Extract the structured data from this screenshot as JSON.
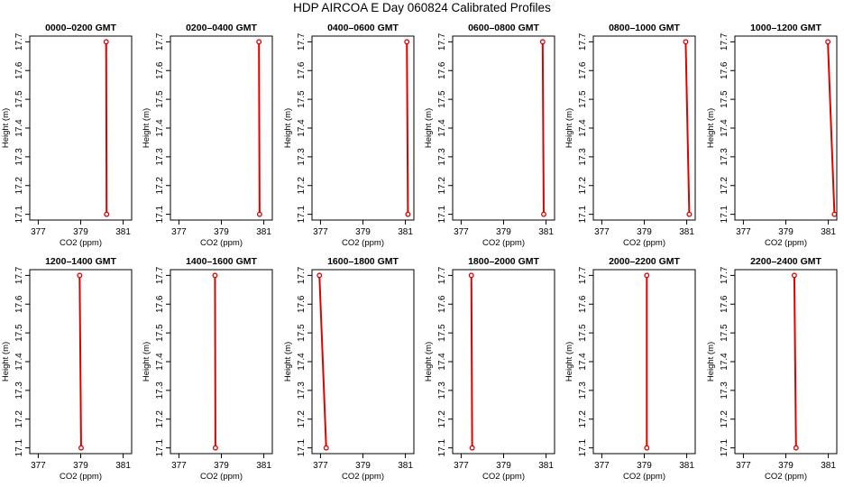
{
  "page": {
    "title": "HDP AIRCOA E  Day 060824  Calibrated Profiles"
  },
  "chart_data": {
    "type": "line",
    "xlabel": "CO2 (ppm)",
    "ylabel": "Height (m)",
    "xlim": [
      376.6,
      381.4
    ],
    "ylim": [
      17.08,
      17.72
    ],
    "xticks": [
      377,
      379,
      381
    ],
    "xtick_labels": [
      "377",
      "379",
      "381"
    ],
    "yticks": [
      17.1,
      17.2,
      17.3,
      17.4,
      17.5,
      17.6,
      17.7
    ],
    "ytick_labels": [
      "17.1",
      "17.2",
      "17.3",
      "17.4",
      "17.5",
      "17.6",
      "17.7"
    ],
    "grid": false,
    "line_color": "#e00000",
    "marker_color": "#e00000",
    "panels": [
      {
        "title": "0000–0200 GMT",
        "points": [
          {
            "x": 380.2,
            "y": 17.7
          },
          {
            "x": 380.22,
            "y": 17.1
          }
        ]
      },
      {
        "title": "0200–0400 GMT",
        "points": [
          {
            "x": 380.77,
            "y": 17.7
          },
          {
            "x": 380.8,
            "y": 17.1
          }
        ]
      },
      {
        "title": "0400–0600 GMT",
        "points": [
          {
            "x": 381.07,
            "y": 17.7
          },
          {
            "x": 381.12,
            "y": 17.1
          }
        ]
      },
      {
        "title": "0600–0800 GMT",
        "points": [
          {
            "x": 380.84,
            "y": 17.7
          },
          {
            "x": 380.89,
            "y": 17.1
          }
        ]
      },
      {
        "title": "0800–1000 GMT",
        "points": [
          {
            "x": 380.95,
            "y": 17.7
          },
          {
            "x": 381.12,
            "y": 17.1
          }
        ]
      },
      {
        "title": "1000–1200 GMT",
        "points": [
          {
            "x": 380.98,
            "y": 17.7
          },
          {
            "x": 381.29,
            "y": 17.1
          }
        ]
      },
      {
        "title": "1200–1400 GMT",
        "points": [
          {
            "x": 378.95,
            "y": 17.7
          },
          {
            "x": 379.02,
            "y": 17.1
          }
        ]
      },
      {
        "title": "1400–1600 GMT",
        "points": [
          {
            "x": 378.7,
            "y": 17.7
          },
          {
            "x": 378.72,
            "y": 17.1
          }
        ]
      },
      {
        "title": "1600–1800 GMT",
        "points": [
          {
            "x": 376.95,
            "y": 17.7
          },
          {
            "x": 377.27,
            "y": 17.1
          }
        ]
      },
      {
        "title": "1800–2000 GMT",
        "points": [
          {
            "x": 377.48,
            "y": 17.7
          },
          {
            "x": 377.52,
            "y": 17.1
          }
        ]
      },
      {
        "title": "2000–2200 GMT",
        "points": [
          {
            "x": 379.12,
            "y": 17.7
          },
          {
            "x": 379.12,
            "y": 17.1
          }
        ]
      },
      {
        "title": "2200–2400 GMT",
        "points": [
          {
            "x": 379.4,
            "y": 17.7
          },
          {
            "x": 379.48,
            "y": 17.1
          }
        ]
      }
    ]
  }
}
